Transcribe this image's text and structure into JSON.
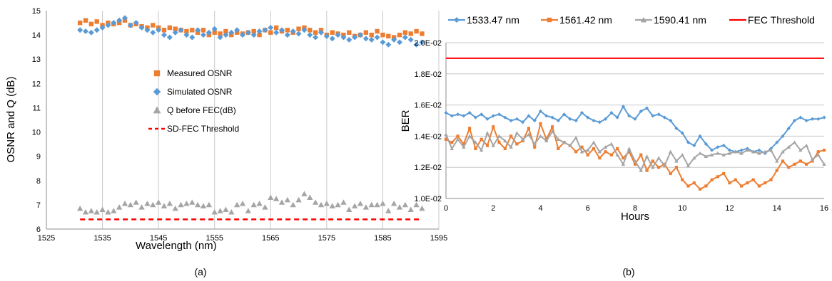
{
  "colors": {
    "orange": "#ED7D31",
    "blue": "#5B9BD5",
    "gray": "#A5A5A5",
    "red": "#FF0000",
    "grid": "#C8C8C8",
    "axis": "#8C8C8C"
  },
  "chart_data": [
    {
      "id": "a",
      "type": "scatter",
      "caption": "(a)",
      "xlabel": "Wavelength (nm)",
      "ylabel": "OSNR and Q (dB)",
      "xlim": [
        1525,
        1595
      ],
      "ylim": [
        6,
        15
      ],
      "xticks": [
        1525,
        1535,
        1545,
        1555,
        1565,
        1575,
        1585,
        1595
      ],
      "yticks": [
        6,
        7,
        8,
        9,
        10,
        11,
        12,
        13,
        14,
        15
      ],
      "grid": "vertical",
      "legend_position": "center-left",
      "series": [
        {
          "name": "Measured OSNR",
          "marker": "square",
          "color": "orange",
          "x": [
            1531,
            1532,
            1533,
            1534,
            1535,
            1536,
            1537,
            1538,
            1539,
            1540,
            1541,
            1542,
            1543,
            1544,
            1545,
            1546,
            1547,
            1548,
            1549,
            1550,
            1551,
            1552,
            1553,
            1554,
            1555,
            1556,
            1557,
            1558,
            1559,
            1560,
            1561,
            1562,
            1563,
            1564,
            1565,
            1566,
            1567,
            1568,
            1569,
            1570,
            1571,
            1572,
            1573,
            1574,
            1575,
            1576,
            1577,
            1578,
            1579,
            1580,
            1581,
            1582,
            1583,
            1584,
            1585,
            1586,
            1587,
            1588,
            1589,
            1590,
            1591,
            1592
          ],
          "y": [
            14.5,
            14.6,
            14.45,
            14.55,
            14.4,
            14.5,
            14.45,
            14.5,
            14.6,
            14.4,
            14.45,
            14.35,
            14.3,
            14.4,
            14.3,
            14.2,
            14.3,
            14.25,
            14.2,
            14.15,
            14.2,
            14.1,
            14.2,
            14.0,
            14.1,
            14.05,
            14.15,
            14.0,
            14.1,
            14.05,
            14.1,
            14.15,
            14.0,
            14.2,
            14.1,
            14.3,
            14.15,
            14.2,
            14.1,
            14.25,
            14.3,
            14.2,
            14.1,
            14.2,
            14.0,
            14.1,
            14.05,
            14.0,
            14.1,
            13.95,
            14.0,
            14.1,
            14.0,
            14.15,
            14.0,
            13.95,
            13.9,
            14.0,
            14.1,
            14.05,
            14.15,
            14.05
          ]
        },
        {
          "name": "Simulated OSNR",
          "marker": "diamond",
          "color": "blue",
          "x": [
            1531,
            1532,
            1533,
            1534,
            1535,
            1536,
            1537,
            1538,
            1539,
            1540,
            1541,
            1542,
            1543,
            1544,
            1545,
            1546,
            1547,
            1548,
            1549,
            1550,
            1551,
            1552,
            1553,
            1554,
            1555,
            1556,
            1557,
            1558,
            1559,
            1560,
            1561,
            1562,
            1563,
            1564,
            1565,
            1566,
            1567,
            1568,
            1569,
            1570,
            1571,
            1572,
            1573,
            1574,
            1575,
            1576,
            1577,
            1578,
            1579,
            1580,
            1581,
            1582,
            1583,
            1584,
            1585,
            1586,
            1587,
            1588,
            1589,
            1590,
            1591,
            1592
          ],
          "y": [
            14.2,
            14.15,
            14.1,
            14.2,
            14.3,
            14.4,
            14.5,
            14.6,
            14.7,
            14.4,
            14.5,
            14.3,
            14.2,
            14.1,
            14.2,
            14.0,
            13.9,
            14.1,
            14.2,
            14.0,
            13.9,
            14.2,
            14.0,
            14.1,
            14.25,
            13.9,
            14.0,
            14.1,
            14.2,
            14.0,
            14.1,
            14.0,
            14.15,
            14.2,
            14.3,
            14.1,
            14.2,
            14.0,
            14.15,
            14.05,
            14.2,
            14.0,
            13.9,
            14.1,
            13.95,
            13.85,
            14.0,
            13.9,
            13.8,
            13.9,
            14.0,
            13.85,
            13.8,
            13.9,
            13.7,
            13.6,
            13.8,
            13.7,
            13.9,
            13.8,
            13.6,
            13.7
          ]
        },
        {
          "name": "Q before FEC(dB)",
          "marker": "triangle",
          "color": "gray",
          "x": [
            1531,
            1532,
            1533,
            1534,
            1535,
            1536,
            1537,
            1538,
            1539,
            1540,
            1541,
            1542,
            1543,
            1544,
            1545,
            1546,
            1547,
            1548,
            1549,
            1550,
            1551,
            1552,
            1553,
            1554,
            1555,
            1556,
            1557,
            1558,
            1559,
            1560,
            1561,
            1562,
            1563,
            1564,
            1565,
            1566,
            1567,
            1568,
            1569,
            1570,
            1571,
            1572,
            1573,
            1574,
            1575,
            1576,
            1577,
            1578,
            1579,
            1580,
            1581,
            1582,
            1583,
            1584,
            1585,
            1586,
            1587,
            1588,
            1589,
            1590,
            1591,
            1592
          ],
          "y": [
            6.85,
            6.7,
            6.75,
            6.7,
            6.8,
            6.7,
            6.75,
            6.9,
            7.05,
            7.0,
            7.1,
            6.9,
            7.05,
            7.0,
            7.1,
            6.95,
            7.05,
            6.85,
            7.0,
            7.05,
            7.1,
            7.0,
            6.95,
            7.0,
            6.7,
            6.75,
            6.8,
            6.7,
            7.0,
            7.05,
            6.75,
            7.0,
            7.05,
            6.9,
            7.3,
            7.25,
            7.1,
            7.2,
            7.0,
            7.2,
            7.45,
            7.3,
            7.1,
            7.0,
            7.05,
            6.95,
            7.0,
            7.1,
            6.8,
            6.95,
            7.05,
            6.9,
            7.0,
            7.0,
            7.05,
            6.75,
            7.05,
            6.9,
            7.0,
            6.8,
            7.0,
            6.85
          ]
        },
        {
          "name": "SD-FEC Threshold",
          "style": "dashed",
          "color": "red",
          "x": [
            1531,
            1592
          ],
          "y": [
            6.4,
            6.4
          ]
        }
      ]
    },
    {
      "id": "b",
      "type": "line",
      "caption": "(b)",
      "xlabel": "Hours",
      "ylabel": "BER",
      "xlim": [
        0,
        16
      ],
      "ylim": [
        0.01,
        0.02
      ],
      "xticks": [
        0,
        2,
        4,
        6,
        8,
        10,
        12,
        14,
        16
      ],
      "ytick_labels": [
        "1.0E-02",
        "1.2E-02",
        "1.4E-02",
        "1.6E-02",
        "1.8E-02",
        "2.0E-02"
      ],
      "yticks": [
        0.01,
        0.012,
        0.014,
        0.016,
        0.018,
        0.02
      ],
      "grid": "horizontal",
      "legend_position": "top",
      "series": [
        {
          "name": "1533.47 nm",
          "marker": "diamond",
          "color": "blue",
          "x": [
            0,
            0.25,
            0.5,
            0.75,
            1,
            1.25,
            1.5,
            1.75,
            2,
            2.25,
            2.5,
            2.75,
            3,
            3.25,
            3.5,
            3.75,
            4,
            4.25,
            4.5,
            4.75,
            5,
            5.25,
            5.5,
            5.75,
            6,
            6.25,
            6.5,
            6.75,
            7,
            7.25,
            7.5,
            7.75,
            8,
            8.25,
            8.5,
            8.75,
            9,
            9.25,
            9.5,
            9.75,
            10,
            10.25,
            10.5,
            10.75,
            11,
            11.25,
            11.5,
            11.75,
            12,
            12.25,
            12.5,
            12.75,
            13,
            13.25,
            13.5,
            13.75,
            14,
            14.25,
            14.5,
            14.75,
            15,
            15.25,
            15.5,
            15.75,
            16
          ],
          "y": [
            0.0155,
            0.0153,
            0.0154,
            0.0153,
            0.0155,
            0.0152,
            0.0154,
            0.0151,
            0.0153,
            0.0154,
            0.0152,
            0.015,
            0.0151,
            0.0149,
            0.0153,
            0.015,
            0.0156,
            0.0153,
            0.0152,
            0.015,
            0.0154,
            0.0151,
            0.015,
            0.0155,
            0.0152,
            0.015,
            0.0149,
            0.0151,
            0.0155,
            0.0152,
            0.0159,
            0.0153,
            0.0151,
            0.0156,
            0.0158,
            0.0153,
            0.0154,
            0.0152,
            0.015,
            0.0145,
            0.0142,
            0.0136,
            0.0134,
            0.014,
            0.0135,
            0.0131,
            0.0133,
            0.0134,
            0.0131,
            0.013,
            0.0131,
            0.0132,
            0.013,
            0.0131,
            0.0129,
            0.0132,
            0.0136,
            0.014,
            0.0145,
            0.015,
            0.0152,
            0.015,
            0.0151,
            0.0151,
            0.0152
          ]
        },
        {
          "name": "1561.42 nm",
          "marker": "square",
          "color": "orange",
          "x": [
            0,
            0.25,
            0.5,
            0.75,
            1,
            1.25,
            1.5,
            1.75,
            2,
            2.25,
            2.5,
            2.75,
            3,
            3.25,
            3.5,
            3.75,
            4,
            4.25,
            4.5,
            4.75,
            5,
            5.25,
            5.5,
            5.75,
            6,
            6.25,
            6.5,
            6.75,
            7,
            7.25,
            7.5,
            7.75,
            8,
            8.25,
            8.5,
            8.75,
            9,
            9.25,
            9.5,
            9.75,
            10,
            10.25,
            10.5,
            10.75,
            11,
            11.25,
            11.5,
            11.75,
            12,
            12.25,
            12.5,
            12.75,
            13,
            13.25,
            13.5,
            13.75,
            14,
            14.25,
            14.5,
            14.75,
            15,
            15.25,
            15.5,
            15.75,
            16
          ],
          "y": [
            0.0138,
            0.0136,
            0.014,
            0.0135,
            0.0145,
            0.0132,
            0.0138,
            0.0134,
            0.0146,
            0.0136,
            0.0132,
            0.014,
            0.0135,
            0.0137,
            0.0145,
            0.0133,
            0.0148,
            0.0138,
            0.0146,
            0.0132,
            0.0136,
            0.0134,
            0.013,
            0.0133,
            0.0128,
            0.0132,
            0.0126,
            0.013,
            0.0128,
            0.0132,
            0.0126,
            0.013,
            0.0122,
            0.0128,
            0.0118,
            0.0124,
            0.012,
            0.0122,
            0.0116,
            0.012,
            0.0112,
            0.0108,
            0.011,
            0.0106,
            0.0108,
            0.0112,
            0.0114,
            0.0116,
            0.011,
            0.0112,
            0.0108,
            0.011,
            0.0112,
            0.0108,
            0.011,
            0.0112,
            0.0118,
            0.0124,
            0.012,
            0.0122,
            0.0124,
            0.0122,
            0.0124,
            0.013,
            0.0131
          ]
        },
        {
          "name": "1590.41 nm",
          "marker": "triangle",
          "color": "gray",
          "x": [
            0,
            0.25,
            0.5,
            0.75,
            1,
            1.25,
            1.5,
            1.75,
            2,
            2.25,
            2.5,
            2.75,
            3,
            3.25,
            3.5,
            3.75,
            4,
            4.25,
            4.5,
            4.75,
            5,
            5.25,
            5.5,
            5.75,
            6,
            6.25,
            6.5,
            6.75,
            7,
            7.25,
            7.5,
            7.75,
            8,
            8.25,
            8.5,
            8.75,
            9,
            9.25,
            9.5,
            9.75,
            10,
            10.25,
            10.5,
            10.75,
            11,
            11.25,
            11.5,
            11.75,
            12,
            12.25,
            12.5,
            12.75,
            13,
            13.25,
            13.5,
            13.75,
            14,
            14.25,
            14.5,
            14.75,
            15,
            15.25,
            15.5,
            15.75,
            16
          ],
          "y": [
            0.0141,
            0.0132,
            0.0138,
            0.0133,
            0.014,
            0.0136,
            0.0131,
            0.0142,
            0.0134,
            0.014,
            0.0137,
            0.0133,
            0.0142,
            0.0138,
            0.0141,
            0.0135,
            0.014,
            0.0137,
            0.0143,
            0.0138,
            0.0136,
            0.0134,
            0.0139,
            0.013,
            0.0131,
            0.0136,
            0.013,
            0.0133,
            0.0135,
            0.0128,
            0.0122,
            0.0132,
            0.0124,
            0.0118,
            0.0127,
            0.012,
            0.0126,
            0.0121,
            0.013,
            0.0124,
            0.0128,
            0.0121,
            0.0126,
            0.0129,
            0.0127,
            0.0128,
            0.0129,
            0.0128,
            0.0129,
            0.013,
            0.0129,
            0.0131,
            0.013,
            0.0129,
            0.013,
            0.0131,
            0.0124,
            0.013,
            0.0133,
            0.0136,
            0.0131,
            0.0134,
            0.0125,
            0.0128,
            0.0122
          ]
        },
        {
          "name": "FEC Threshold",
          "style": "solid",
          "color": "red",
          "x": [
            0,
            16
          ],
          "y": [
            0.019,
            0.019
          ]
        }
      ]
    }
  ]
}
